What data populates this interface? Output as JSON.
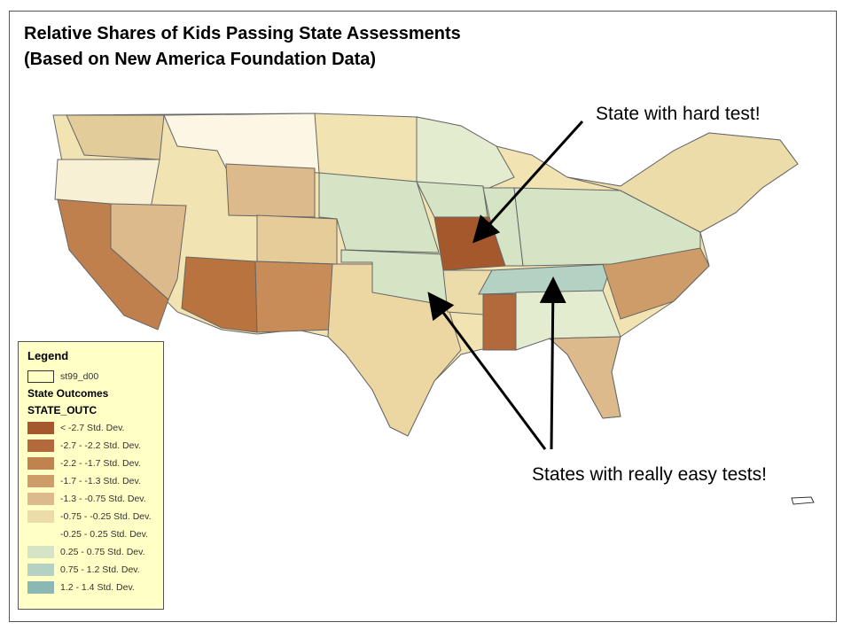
{
  "title": {
    "line1": "Relative Shares of Kids Passing State Assessments",
    "line2": "(Based on New America Foundation Data)"
  },
  "annotations": {
    "hard": "State with hard test!",
    "easy": "States with really easy tests!"
  },
  "legend": {
    "title": "Legend",
    "boundary_label": "st99_d00",
    "layer_title": "State Outcomes",
    "field": "STATE_OUTC",
    "classes": [
      {
        "label": "< -2.7 Std. Dev.",
        "color": "#a4582c"
      },
      {
        "label": "-2.7 - -2.2 Std. Dev.",
        "color": "#b26a3c"
      },
      {
        "label": "-2.2 - -1.7 Std. Dev.",
        "color": "#c0824f"
      },
      {
        "label": "-1.7 - -1.3 Std. Dev.",
        "color": "#cd9c68"
      },
      {
        "label": "-1.3 - -0.75 Std. Dev.",
        "color": "#dcba8b"
      },
      {
        "label": "-0.75 - -0.25 Std. Dev.",
        "color": "#ecdcaa"
      },
      {
        "label": "-0.25 - 0.25 Std. Dev.",
        "color": "#ffffc6"
      },
      {
        "label": "0.25 - 0.75 Std. Dev.",
        "color": "#d4e4c4"
      },
      {
        "label": "0.75 - 1.2 Std. Dev.",
        "color": "#b4d2c4"
      },
      {
        "label": "1.2 - 1.4 Std. Dev.",
        "color": "#8cb8b4"
      }
    ]
  }
}
